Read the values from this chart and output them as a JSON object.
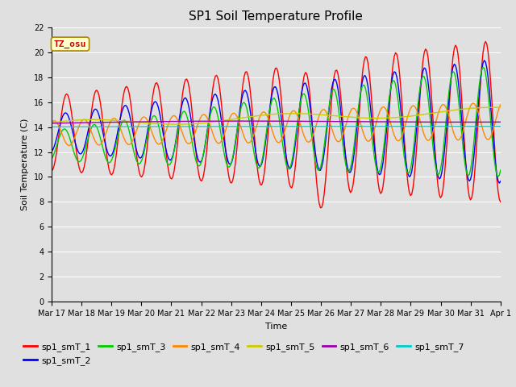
{
  "title": "SP1 Soil Temperature Profile",
  "xlabel": "Time",
  "ylabel": "Soil Temperature (C)",
  "ylim": [
    0,
    22
  ],
  "yticks": [
    0,
    2,
    4,
    6,
    8,
    10,
    12,
    14,
    16,
    18,
    20,
    22
  ],
  "n_days": 15,
  "x_tick_labels": [
    "Mar 17",
    "Mar 18",
    "Mar 19",
    "Mar 20",
    "Mar 21",
    "Mar 22",
    "Mar 23",
    "Mar 24",
    "Mar 25",
    "Mar 26",
    "Mar 27",
    "Mar 28",
    "Mar 29",
    "Mar 30",
    "Mar 31",
    "Apr 1"
  ],
  "series": [
    {
      "name": "sp1_smT_1",
      "color": "#ff0000"
    },
    {
      "name": "sp1_smT_2",
      "color": "#0000ff"
    },
    {
      "name": "sp1_smT_3",
      "color": "#00cc00"
    },
    {
      "name": "sp1_smT_4",
      "color": "#ff8800"
    },
    {
      "name": "sp1_smT_5",
      "color": "#cccc00"
    },
    {
      "name": "sp1_smT_6",
      "color": "#9900aa"
    },
    {
      "name": "sp1_smT_7",
      "color": "#00cccc"
    }
  ],
  "annotation_text": "TZ_osu",
  "bg_color": "#e0e0e0",
  "grid_color": "#ffffff",
  "title_fontsize": 11,
  "axis_label_fontsize": 8,
  "tick_fontsize": 7,
  "legend_fontsize": 8
}
